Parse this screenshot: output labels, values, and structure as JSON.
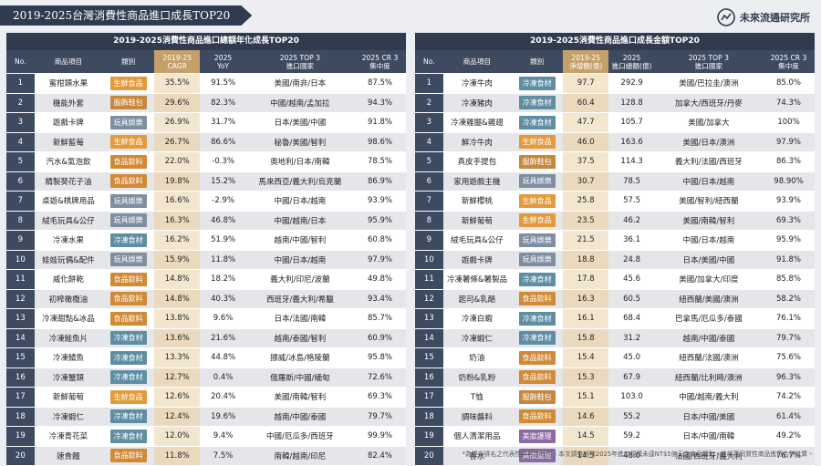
{
  "header": {
    "title": "2019-2025台灣消費性商品進口成長TOP20",
    "brand": "未來流通研究所"
  },
  "category_colors": {
    "生鮮食品": "#e39a3b",
    "服飾鞋包": "#c8873f",
    "玩具娛樂": "#7f8ea1",
    "食品飲料": "#d18a35",
    "冷凍食材": "#5f8ea3",
    "美妝護理": "#8c6aa6"
  },
  "tables": [
    {
      "title": "2019-2025消費性商品進口總額年化成長TOP20",
      "columns": [
        "No.",
        "商品項目",
        "類別",
        "2019-25\nCAGR",
        "2025\nYoY",
        "2025 TOP 3\n進口國家",
        "2025 CR 3\n集中度"
      ],
      "rows": [
        [
          "1",
          "蜜柑類水果",
          "生鮮食品",
          "35.5%",
          "91.5%",
          "美國/南非/日本",
          "87.5%"
        ],
        [
          "2",
          "機能外套",
          "服飾鞋包",
          "29.6%",
          "82.3%",
          "中國/越南/孟加拉",
          "94.3%"
        ],
        [
          "3",
          "遊戲卡牌",
          "玩具娛樂",
          "26.9%",
          "31.7%",
          "日本/美國/中國",
          "91.8%"
        ],
        [
          "4",
          "新鮮藍莓",
          "生鮮食品",
          "26.7%",
          "86.6%",
          "秘魯/美國/智利",
          "98.6%"
        ],
        [
          "5",
          "汽水&氣泡飲",
          "食品飲料",
          "22.0%",
          "-0.3%",
          "奧地利/日本/南韓",
          "78.5%"
        ],
        [
          "6",
          "精製葵花子油",
          "食品飲料",
          "19.8%",
          "15.2%",
          "馬來西亞/義大利/烏克蘭",
          "86.9%"
        ],
        [
          "7",
          "桌遊&棋牌用品",
          "玩具娛樂",
          "16.6%",
          "-2.9%",
          "中國/日本/越南",
          "93.9%"
        ],
        [
          "8",
          "絨毛玩具&公仔",
          "玩具娛樂",
          "16.3%",
          "46.8%",
          "中國/越南/日本",
          "95.9%"
        ],
        [
          "9",
          "冷凍水果",
          "冷凍食材",
          "16.2%",
          "51.9%",
          "越南/中國/智利",
          "60.8%"
        ],
        [
          "10",
          "娃娃玩偶&配件",
          "玩具娛樂",
          "15.9%",
          "11.8%",
          "中國/日本/越南",
          "97.9%"
        ],
        [
          "11",
          "威化餅乾",
          "食品飲料",
          "14.8%",
          "18.2%",
          "義大利/印尼/波蘭",
          "49.8%"
        ],
        [
          "12",
          "初榨橄欖油",
          "食品飲料",
          "14.8%",
          "40.3%",
          "西班牙/義大利/希臘",
          "93.4%"
        ],
        [
          "13",
          "冷凍甜點&冰品",
          "食品飲料",
          "13.8%",
          "9.6%",
          "日本/法國/南韓",
          "85.7%"
        ],
        [
          "14",
          "冷凍鮭魚片",
          "冷凍食材",
          "13.6%",
          "21.6%",
          "越南/泰國/智利",
          "60.9%"
        ],
        [
          "15",
          "冷凍鯖魚",
          "冷凍食材",
          "13.3%",
          "44.8%",
          "挪威/冰島/格陵蘭",
          "95.8%"
        ],
        [
          "16",
          "冷凍蟹類",
          "冷凍食材",
          "12.7%",
          "0.4%",
          "俄羅斯/中國/緬甸",
          "72.6%"
        ],
        [
          "17",
          "新鮮葡萄",
          "生鮮食品",
          "12.6%",
          "20.4%",
          "美國/南韓/智利",
          "69.3%"
        ],
        [
          "18",
          "冷凍蝦仁",
          "冷凍食材",
          "12.4%",
          "19.6%",
          "越南/中國/泰國",
          "79.7%"
        ],
        [
          "19",
          "冷凍青花菜",
          "冷凍食材",
          "12.0%",
          "9.4%",
          "中國/厄瓜多/西班牙",
          "99.9%"
        ],
        [
          "20",
          "速食麵",
          "食品飲料",
          "11.8%",
          "7.5%",
          "南韓/越南/印尼",
          "82.4%"
        ]
      ]
    },
    {
      "title": "2019-2025消費性商品進口成長金額TOP20",
      "columns": [
        "No.",
        "商品項目",
        "類別",
        "2019-25\n淨增額(億)",
        "2025\n進口總額(億)",
        "2025 TOP 3\n進口國家",
        "2025 CR 3\n集中度"
      ],
      "rows": [
        [
          "1",
          "冷凍牛肉",
          "冷凍食材",
          "97.7",
          "292.9",
          "美國/巴拉圭/澳洲",
          "85.0%"
        ],
        [
          "2",
          "冷凍豬肉",
          "冷凍食材",
          "60.4",
          "128.8",
          "加拿大/西班牙/丹麥",
          "74.3%"
        ],
        [
          "3",
          "冷凍雞腿&雞翅",
          "冷凍食材",
          "47.7",
          "105.7",
          "美國/加拿大",
          "100%"
        ],
        [
          "4",
          "鮮冷牛肉",
          "生鮮食品",
          "46.0",
          "163.6",
          "美國/日本/澳洲",
          "97.9%"
        ],
        [
          "5",
          "真皮手提包",
          "服飾鞋包",
          "37.5",
          "114.3",
          "義大利/法國/西班牙",
          "86.3%"
        ],
        [
          "6",
          "家用遊戲主機",
          "玩具娛樂",
          "30.7",
          "78.5",
          "中國/日本/越南",
          "98.90%"
        ],
        [
          "7",
          "新鮮櫻桃",
          "生鮮食品",
          "25.8",
          "57.5",
          "美國/智利/紐西蘭",
          "93.9%"
        ],
        [
          "8",
          "新鮮葡萄",
          "生鮮食品",
          "23.5",
          "46.2",
          "美國/南韓/智利",
          "69.3%"
        ],
        [
          "9",
          "絨毛玩具&公仔",
          "玩具娛樂",
          "21.5",
          "36.1",
          "中國/日本/越南",
          "95.9%"
        ],
        [
          "10",
          "遊戲卡牌",
          "玩具娛樂",
          "18.8",
          "24.8",
          "日本/美國/中國",
          "91.8%"
        ],
        [
          "11",
          "冷凍薯條&薯製品",
          "冷凍食材",
          "17.8",
          "45.6",
          "美國/加拿大/印度",
          "85.8%"
        ],
        [
          "12",
          "起司&乳酪",
          "食品飲料",
          "16.3",
          "60.5",
          "紐西蘭/美國/澳洲",
          "58.2%"
        ],
        [
          "13",
          "冷凍白蝦",
          "冷凍食材",
          "16.1",
          "68.4",
          "巴拿馬/厄瓜多/泰國",
          "76.1%"
        ],
        [
          "14",
          "冷凍蝦仁",
          "冷凍食材",
          "15.8",
          "31.2",
          "越南/中國/泰國",
          "79.7%"
        ],
        [
          "15",
          "奶油",
          "食品飲料",
          "15.4",
          "45.0",
          "紐西蘭/法國/澳洲",
          "75.6%"
        ],
        [
          "16",
          "奶粉&乳粉",
          "食品飲料",
          "15.3",
          "67.9",
          "紐西蘭/比利時/澳洲",
          "96.3%"
        ],
        [
          "17",
          "T恤",
          "服飾鞋包",
          "15.1",
          "103.0",
          "中國/越南/義大利",
          "74.2%"
        ],
        [
          "18",
          "調味醬料",
          "食品飲料",
          "14.6",
          "55.2",
          "日本/中國/美國",
          "61.4%"
        ],
        [
          "19",
          "個人清潔用品",
          "美妝護理",
          "14.5",
          "59.2",
          "日本/中國/南韓",
          "49.2%"
        ],
        [
          "20",
          "香水",
          "美妝護理",
          "14.5",
          "48.0",
          "法國/西班牙/義大利",
          "76.7%"
        ]
      ]
    }
  ],
  "footnote": "*為提升排名之代表性與可比較性，本次調查排除2025年進口規模未達NT$5億元之商品類別，並就高同質性商品進行合併計算。"
}
